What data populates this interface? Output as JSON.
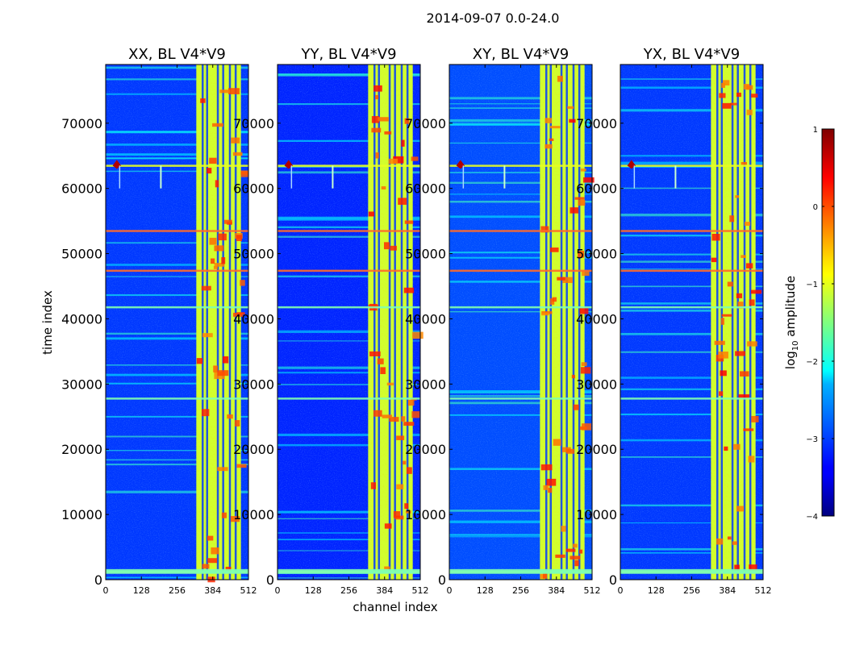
{
  "chart_data": {
    "type": "heatmap",
    "suptitle": "2014-09-07 0.0-24.0",
    "xlabel": "channel index",
    "ylabel": "time index",
    "xlim": [
      0,
      512
    ],
    "ylim": [
      0,
      79000
    ],
    "xticks": [
      0,
      128,
      256,
      384,
      512
    ],
    "xtick_labels": [
      "0",
      "128",
      "256",
      "384",
      "512"
    ],
    "yticks": [
      0,
      10000,
      20000,
      30000,
      40000,
      50000,
      60000,
      70000
    ],
    "ytick_labels": [
      "0",
      "10000",
      "20000",
      "30000",
      "40000",
      "50000",
      "60000",
      "70000"
    ],
    "colormap": "jet",
    "panels": [
      {
        "title": "XX, BL V4*V9",
        "background_log_amplitude": -3.1,
        "rfi_channel_band": [
          325,
          485
        ]
      },
      {
        "title": "YY, BL V4*V9",
        "background_log_amplitude": -3.2,
        "rfi_channel_band": [
          325,
          485
        ]
      },
      {
        "title": "XY, BL V4*V9",
        "background_log_amplitude": -3.0,
        "rfi_channel_band": [
          325,
          485
        ]
      },
      {
        "title": "YX, BL V4*V9",
        "background_log_amplitude": -3.1,
        "rfi_channel_band": [
          325,
          485
        ]
      }
    ],
    "rfi_time_index_events": [
      1500,
      27800,
      41800,
      47400,
      53500,
      63500
    ],
    "colorbar": {
      "label_prefix": "log",
      "label_subscript": "10",
      "label_suffix": " amplitude",
      "range": [
        -4,
        1
      ],
      "ticks": [
        1,
        0,
        -1,
        -2,
        -3,
        -4
      ],
      "tick_labels": [
        "1",
        "0",
        "−1",
        "−2",
        "−3",
        "−4"
      ]
    }
  }
}
